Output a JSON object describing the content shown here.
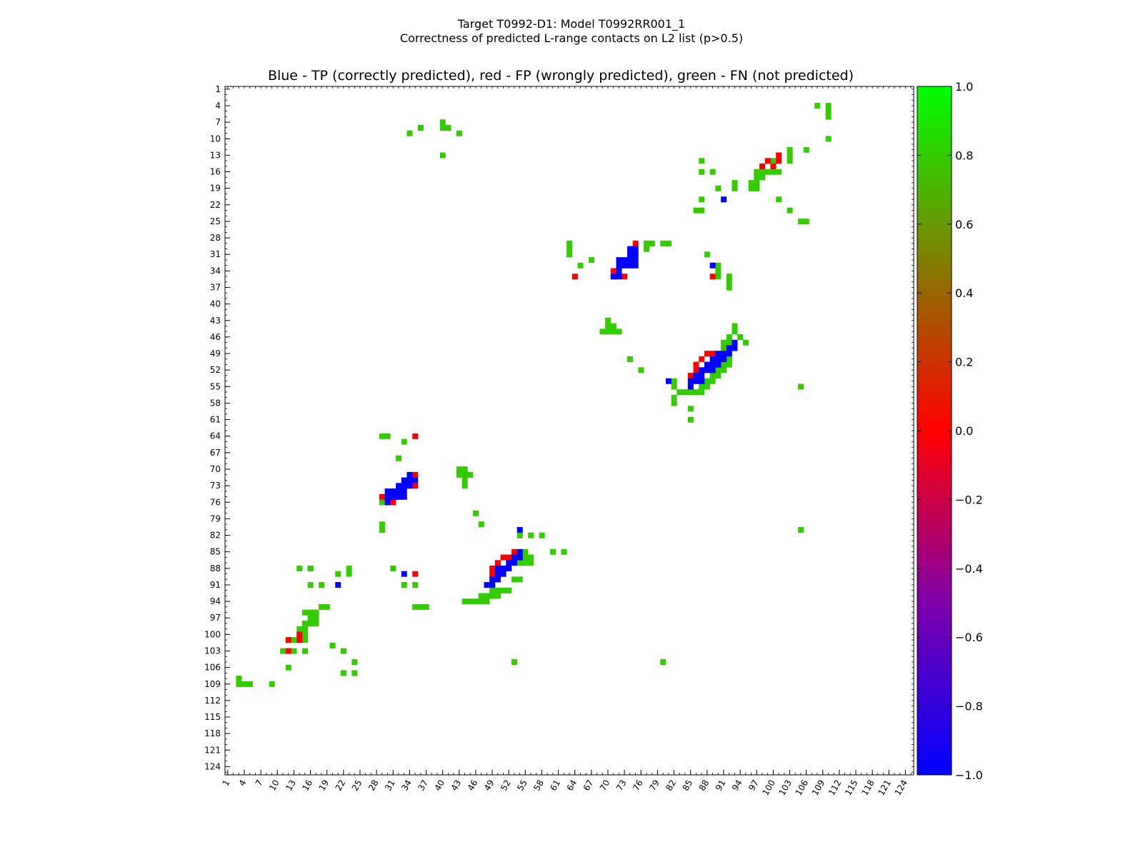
{
  "chart_data": {
    "type": "heatmap",
    "suptitle_line1": "Target T0992-D1: Model T0992RR001_1",
    "suptitle_line2": "Correctness of predicted L-range contacts on L2 list (p>0.5)",
    "title": "Blue - TP (correctly predicted), red - FP (wrongly predicted), green - FN (not predicted)",
    "n": 125,
    "ticks": [
      1,
      4,
      7,
      10,
      13,
      16,
      19,
      22,
      25,
      28,
      31,
      34,
      37,
      40,
      43,
      46,
      49,
      52,
      55,
      58,
      61,
      64,
      67,
      70,
      73,
      76,
      79,
      82,
      85,
      88,
      91,
      94,
      97,
      100,
      103,
      106,
      109,
      112,
      115,
      118,
      121,
      124
    ],
    "colorbar": {
      "min": -1.0,
      "max": 1.0,
      "tick_values": [
        -1.0,
        -0.8,
        -0.6,
        -0.4,
        -0.2,
        0.0,
        0.2,
        0.4,
        0.6,
        0.8,
        1.0
      ],
      "tick_labels": [
        "−1.0",
        "−0.8",
        "−0.6",
        "−0.4",
        "−0.2",
        "0.0",
        "0.2",
        "0.4",
        "0.6",
        "0.8",
        "1.0"
      ]
    },
    "legend": {
      "tp": "blue",
      "fp": "red",
      "fn": "green"
    },
    "colors": {
      "tp": "#0000ff",
      "fp": "#ff0000",
      "fn": "#33cc00"
    },
    "cells": {
      "tp": [
        [
          30,
          74
        ],
        [
          30,
          75
        ],
        [
          31,
          74
        ],
        [
          31,
          75
        ],
        [
          32,
          72
        ],
        [
          32,
          73
        ],
        [
          32,
          74
        ],
        [
          32,
          75
        ],
        [
          33,
          72
        ],
        [
          33,
          73
        ],
        [
          33,
          74
        ],
        [
          33,
          75
        ],
        [
          34,
          72
        ],
        [
          35,
          71
        ],
        [
          35,
          72
        ],
        [
          33,
          89
        ],
        [
          21,
          91
        ],
        [
          47,
          93
        ],
        [
          48,
          92
        ],
        [
          48,
          93
        ],
        [
          49,
          90
        ],
        [
          49,
          91
        ],
        [
          49,
          92
        ],
        [
          50,
          89
        ],
        [
          50,
          90
        ],
        [
          50,
          91
        ],
        [
          51,
          88
        ],
        [
          51,
          89
        ],
        [
          51,
          90
        ],
        [
          52,
          87
        ],
        [
          52,
          88
        ],
        [
          52,
          89
        ],
        [
          53,
          86
        ],
        [
          53,
          87
        ],
        [
          54,
          81
        ],
        [
          54,
          85
        ],
        [
          54,
          86
        ],
        [
          54,
          87
        ],
        [
          55,
          85
        ],
        [
          71,
          34
        ],
        [
          72,
          33
        ],
        [
          72,
          34
        ],
        [
          72,
          35
        ],
        [
          73,
          32
        ],
        [
          73,
          33
        ],
        [
          73,
          34
        ],
        [
          74,
          30
        ],
        [
          74,
          31
        ],
        [
          74,
          32
        ],
        [
          74,
          33
        ],
        [
          75,
          30
        ],
        [
          75,
          31
        ],
        [
          75,
          32
        ],
        [
          75,
          33
        ],
        [
          76,
          30
        ],
        [
          81,
          54
        ],
        [
          85,
          54
        ],
        [
          86,
          53
        ],
        [
          86,
          54
        ],
        [
          87,
          52
        ],
        [
          87,
          53
        ],
        [
          88,
          50
        ],
        [
          88,
          51
        ],
        [
          88,
          52
        ],
        [
          89,
          50
        ],
        [
          89,
          51
        ],
        [
          90,
          49
        ],
        [
          90,
          50
        ],
        [
          91,
          48
        ],
        [
          91,
          49
        ],
        [
          89,
          33
        ],
        [
          91,
          21
        ]
      ],
      "fp": [
        [
          13,
          101
        ],
        [
          14,
          99
        ],
        [
          14,
          101
        ],
        [
          15,
          98
        ],
        [
          15,
          100
        ],
        [
          29,
          75
        ],
        [
          31,
          75
        ],
        [
          34,
          71
        ],
        [
          35,
          64
        ],
        [
          35,
          71
        ],
        [
          35,
          73
        ],
        [
          35,
          89
        ],
        [
          49,
          88
        ],
        [
          49,
          89
        ],
        [
          50,
          87
        ],
        [
          51,
          86
        ],
        [
          52,
          86
        ],
        [
          53,
          85
        ],
        [
          53,
          86
        ],
        [
          64,
          35
        ],
        [
          71,
          35
        ],
        [
          73,
          35
        ],
        [
          75,
          29
        ],
        [
          75,
          30
        ],
        [
          75,
          31
        ],
        [
          75,
          32
        ],
        [
          76,
          31
        ],
        [
          85,
          53
        ],
        [
          86,
          51
        ],
        [
          86,
          52
        ],
        [
          87,
          50
        ],
        [
          88,
          49
        ],
        [
          89,
          49
        ],
        [
          89,
          35
        ],
        [
          100,
          14
        ],
        [
          101,
          12
        ],
        [
          101,
          14
        ],
        [
          103,
          12
        ]
      ],
      "fn": [
        [
          4,
          108
        ],
        [
          4,
          110
        ],
        [
          5,
          110
        ],
        [
          6,
          110
        ],
        [
          10,
          110
        ],
        [
          7,
          40
        ],
        [
          8,
          40
        ],
        [
          8,
          41
        ],
        [
          9,
          34
        ],
        [
          8,
          36
        ],
        [
          9,
          43
        ],
        [
          13,
          40
        ],
        [
          12,
          103
        ],
        [
          13,
          103
        ],
        [
          14,
          87
        ],
        [
          14,
          100
        ],
        [
          14,
          103
        ],
        [
          15,
          100
        ],
        [
          16,
          87
        ],
        [
          16,
          89
        ],
        [
          16,
          97
        ],
        [
          16,
          98
        ],
        [
          16,
          99
        ],
        [
          16,
          100
        ],
        [
          16,
          101
        ],
        [
          17,
          97
        ],
        [
          17,
          98
        ],
        [
          18,
          93
        ],
        [
          18,
          96
        ],
        [
          18,
          97
        ],
        [
          19,
          90
        ],
        [
          19,
          93
        ],
        [
          19,
          96
        ],
        [
          19,
          97
        ],
        [
          21,
          87
        ],
        [
          21,
          101
        ],
        [
          23,
          86
        ],
        [
          23,
          87
        ],
        [
          23,
          103
        ],
        [
          25,
          105
        ],
        [
          25,
          106
        ],
        [
          12,
          106
        ],
        [
          29,
          63
        ],
        [
          30,
          63
        ],
        [
          29,
          77
        ],
        [
          29,
          78
        ],
        [
          29,
          80
        ],
        [
          29,
          81
        ],
        [
          30,
          77
        ],
        [
          31,
          63
        ],
        [
          31,
          88
        ],
        [
          32,
          67
        ],
        [
          33,
          65
        ],
        [
          33,
          90
        ],
        [
          34,
          90
        ],
        [
          35,
          90
        ],
        [
          35,
          92
        ],
        [
          36,
          92
        ],
        [
          37,
          92
        ],
        [
          43,
          70
        ],
        [
          44,
          70
        ],
        [
          44,
          71
        ],
        [
          45,
          69
        ],
        [
          45,
          70
        ],
        [
          45,
          71
        ],
        [
          45,
          72
        ],
        [
          45,
          93
        ],
        [
          44,
          93
        ],
        [
          46,
          92
        ],
        [
          46,
          94
        ],
        [
          47,
          91
        ],
        [
          47,
          92
        ],
        [
          47,
          95
        ],
        [
          48,
          91
        ],
        [
          49,
          92
        ],
        [
          50,
          74
        ],
        [
          52,
          76
        ],
        [
          50,
          92
        ],
        [
          51,
          91
        ],
        [
          51,
          92
        ],
        [
          52,
          90
        ],
        [
          52,
          91
        ],
        [
          53,
          89
        ],
        [
          53,
          90
        ],
        [
          54,
          82
        ],
        [
          54,
          88
        ],
        [
          54,
          89
        ],
        [
          55,
          82
        ],
        [
          55,
          87
        ],
        [
          55,
          88
        ],
        [
          56,
          83
        ],
        [
          56,
          84
        ],
        [
          56,
          85
        ],
        [
          56,
          86
        ],
        [
          56,
          87
        ],
        [
          57,
          82
        ],
        [
          58,
          82
        ],
        [
          59,
          85
        ],
        [
          61,
          85
        ],
        [
          55,
          105
        ],
        [
          64,
          29
        ],
        [
          64,
          30
        ],
        [
          65,
          33
        ],
        [
          68,
          32
        ],
        [
          70,
          43
        ],
        [
          70,
          44
        ],
        [
          71,
          43
        ],
        [
          71,
          44
        ],
        [
          71,
          45
        ],
        [
          72,
          44
        ],
        [
          73,
          44
        ],
        [
          78,
          46
        ],
        [
          80,
          47
        ],
        [
          76,
          29
        ],
        [
          76,
          30
        ],
        [
          76,
          31
        ],
        [
          80,
          29
        ],
        [
          81,
          29
        ],
        [
          82,
          54
        ],
        [
          82,
          56
        ],
        [
          82,
          58
        ],
        [
          85,
          55
        ],
        [
          85,
          60
        ],
        [
          85,
          62
        ],
        [
          86,
          55
        ],
        [
          86,
          56
        ],
        [
          87,
          54
        ],
        [
          87,
          55
        ],
        [
          87,
          56
        ],
        [
          88,
          31
        ],
        [
          88,
          23
        ],
        [
          88,
          16
        ],
        [
          88,
          14
        ],
        [
          89,
          21
        ],
        [
          89,
          23
        ],
        [
          90,
          53
        ],
        [
          90,
          54
        ],
        [
          91,
          18
        ],
        [
          91,
          16
        ],
        [
          91,
          33
        ],
        [
          91,
          35
        ],
        [
          92,
          49
        ],
        [
          92,
          50
        ],
        [
          92,
          51
        ],
        [
          92,
          52
        ],
        [
          93,
          47
        ],
        [
          93,
          48
        ],
        [
          93,
          49
        ],
        [
          93,
          50
        ],
        [
          94,
          45
        ],
        [
          94,
          46
        ],
        [
          94,
          47
        ],
        [
          94,
          48
        ],
        [
          94,
          44
        ],
        [
          95,
          18
        ],
        [
          95,
          19
        ],
        [
          95,
          37
        ],
        [
          95,
          36
        ],
        [
          95,
          35
        ],
        [
          96,
          17
        ],
        [
          96,
          16
        ],
        [
          96,
          15
        ],
        [
          97,
          17
        ],
        [
          97,
          16
        ],
        [
          98,
          17
        ],
        [
          98,
          16
        ],
        [
          98,
          15
        ],
        [
          99,
          15
        ],
        [
          99,
          14
        ],
        [
          100,
          14
        ],
        [
          100,
          15
        ],
        [
          101,
          13
        ],
        [
          101,
          12
        ],
        [
          101,
          15
        ],
        [
          102,
          20
        ],
        [
          103,
          13
        ],
        [
          103,
          15
        ],
        [
          103,
          11
        ],
        [
          103,
          22
        ],
        [
          105,
          24
        ],
        [
          105,
          53
        ],
        [
          105,
          80
        ],
        [
          106,
          12
        ],
        [
          107,
          22
        ],
        [
          107,
          24
        ],
        [
          108,
          3
        ],
        [
          109,
          3
        ],
        [
          109,
          4
        ],
        [
          109,
          5
        ],
        [
          109,
          9
        ],
        [
          81,
          105
        ],
        [
          88,
          16
        ]
      ]
    }
  }
}
